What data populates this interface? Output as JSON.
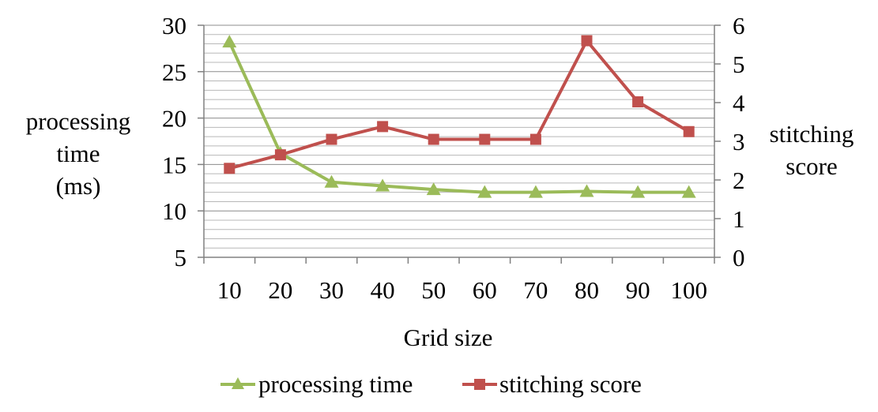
{
  "chart_data": {
    "type": "line",
    "title": "",
    "xlabel": "Grid size",
    "ylabel_left": [
      "processing",
      "time",
      "(ms)"
    ],
    "ylabel_right": [
      "stitching",
      "score"
    ],
    "categories": [
      "10",
      "20",
      "30",
      "40",
      "50",
      "60",
      "70",
      "80",
      "90",
      "100"
    ],
    "y_left": {
      "min": 5,
      "max": 30,
      "ticks": [
        "5",
        "10",
        "15",
        "20",
        "25",
        "30"
      ]
    },
    "y_right": {
      "min": 0,
      "max": 6,
      "ticks": [
        "0",
        "1",
        "2",
        "3",
        "4",
        "5",
        "6"
      ]
    },
    "grid": true,
    "legend_position": "bottom",
    "series": [
      {
        "name": "processing time",
        "axis": "left",
        "marker": "triangle",
        "color": "#9BBB59",
        "values": [
          28.2,
          16.2,
          13.1,
          12.7,
          12.3,
          12.0,
          12.0,
          12.1,
          12.0,
          12.0
        ]
      },
      {
        "name": "stitching score",
        "axis": "right",
        "marker": "square",
        "color": "#C0504D",
        "values": [
          2.3,
          2.65,
          3.05,
          3.38,
          3.05,
          3.05,
          3.05,
          5.6,
          4.02,
          3.25
        ]
      }
    ]
  }
}
